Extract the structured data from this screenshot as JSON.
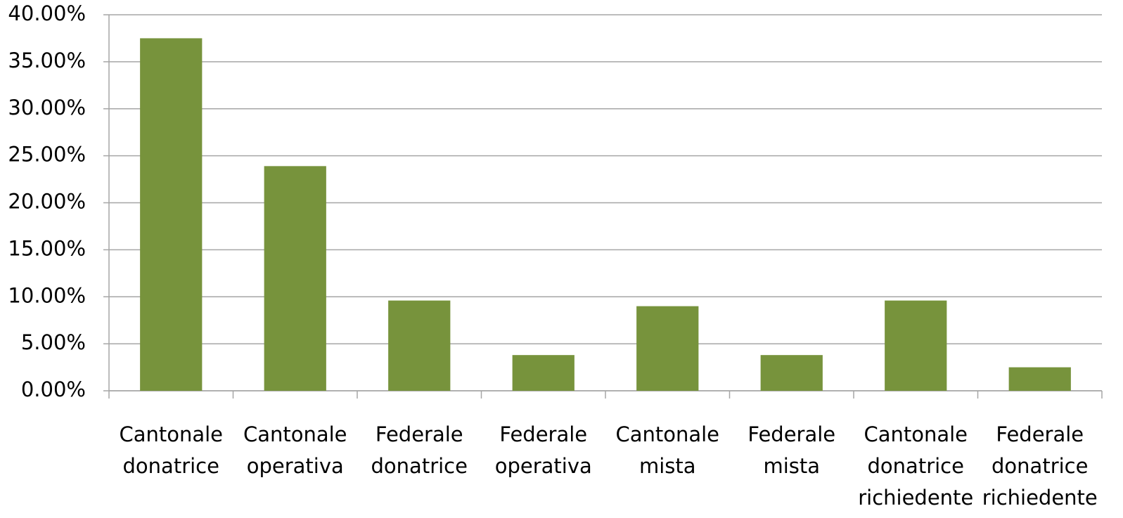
{
  "chart_data": {
    "type": "bar",
    "categories": [
      "Cantonale donatrice",
      "Cantonale operativa",
      "Federale donatrice",
      "Federale operativa",
      "Cantonale mista",
      "Federale mista",
      "Cantonale donatrice richiedente",
      "Federale donatrice richiedente"
    ],
    "values": [
      37.5,
      23.9,
      9.6,
      3.8,
      9.0,
      3.8,
      9.6,
      2.5
    ],
    "color": "#77933c",
    "ylim": [
      0,
      40
    ],
    "yticks": [
      {
        "value": 0,
        "label": "0.00%"
      },
      {
        "value": 5,
        "label": "5.00%"
      },
      {
        "value": 10,
        "label": "10.00%"
      },
      {
        "value": 15,
        "label": "15.00%"
      },
      {
        "value": 20,
        "label": "20.00%"
      },
      {
        "value": 25,
        "label": "25.00%"
      },
      {
        "value": 30,
        "label": "30.00%"
      },
      {
        "value": 35,
        "label": "35.00%"
      },
      {
        "value": 40,
        "label": "40.00%"
      }
    ],
    "grid": true
  }
}
